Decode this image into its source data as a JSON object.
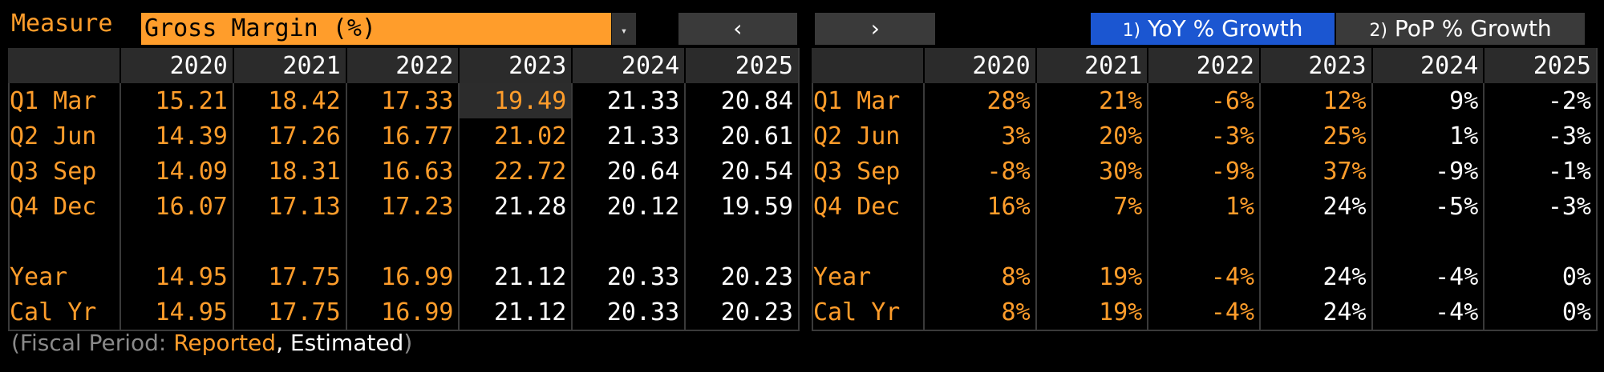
{
  "toolbar": {
    "measure_label": "Measure",
    "measure_value": "Gross Margin (%)",
    "dropdown_glyph": "▾",
    "prev_glyph": "‹",
    "next_glyph": "›",
    "yoy_key": "1)",
    "yoy_label": "YoY % Growth",
    "pop_key": "2)",
    "pop_label": "PoP % Growth"
  },
  "colors": {
    "accent_orange": "#ff9d2b",
    "selected_blue": "#1b56d1",
    "header_gray": "#2b2b2b"
  },
  "years": [
    "2020",
    "2021",
    "2022",
    "2023",
    "2024",
    "2025"
  ],
  "left_table": {
    "rows": [
      {
        "label": "Q1 Mar",
        "values": [
          "15.21",
          "18.42",
          "17.33",
          "19.49",
          "21.33",
          "20.84"
        ],
        "reported": [
          true,
          true,
          true,
          true,
          false,
          false
        ]
      },
      {
        "label": "Q2 Jun",
        "values": [
          "14.39",
          "17.26",
          "16.77",
          "21.02",
          "21.33",
          "20.61"
        ],
        "reported": [
          true,
          true,
          true,
          true,
          false,
          false
        ]
      },
      {
        "label": "Q3 Sep",
        "values": [
          "14.09",
          "18.31",
          "16.63",
          "22.72",
          "20.64",
          "20.54"
        ],
        "reported": [
          true,
          true,
          true,
          true,
          false,
          false
        ]
      },
      {
        "label": "Q4 Dec",
        "values": [
          "16.07",
          "17.13",
          "17.23",
          "21.28",
          "20.12",
          "19.59"
        ],
        "reported": [
          true,
          true,
          true,
          false,
          false,
          false
        ]
      },
      {
        "label": "",
        "values": [
          "",
          "",
          "",
          "",
          "",
          ""
        ],
        "reported": [
          false,
          false,
          false,
          false,
          false,
          false
        ]
      },
      {
        "label": "Year",
        "values": [
          "14.95",
          "17.75",
          "16.99",
          "21.12",
          "20.33",
          "20.23"
        ],
        "reported": [
          true,
          true,
          true,
          false,
          false,
          false
        ]
      },
      {
        "label": "Cal Yr",
        "values": [
          "14.95",
          "17.75",
          "16.99",
          "21.12",
          "20.33",
          "20.23"
        ],
        "reported": [
          true,
          true,
          true,
          false,
          false,
          false
        ]
      }
    ]
  },
  "right_table": {
    "rows": [
      {
        "label": "Q1 Mar",
        "values": [
          "28%",
          "21%",
          "-6%",
          "12%",
          "9%",
          "-2%"
        ],
        "reported": [
          true,
          true,
          true,
          true,
          false,
          false
        ]
      },
      {
        "label": "Q2 Jun",
        "values": [
          "3%",
          "20%",
          "-3%",
          "25%",
          "1%",
          "-3%"
        ],
        "reported": [
          true,
          true,
          true,
          true,
          false,
          false
        ]
      },
      {
        "label": "Q3 Sep",
        "values": [
          "-8%",
          "30%",
          "-9%",
          "37%",
          "-9%",
          "-1%"
        ],
        "reported": [
          true,
          true,
          true,
          true,
          false,
          false
        ]
      },
      {
        "label": "Q4 Dec",
        "values": [
          "16%",
          "7%",
          "1%",
          "24%",
          "-5%",
          "-3%"
        ],
        "reported": [
          true,
          true,
          true,
          false,
          false,
          false
        ]
      },
      {
        "label": "",
        "values": [
          "",
          "",
          "",
          "",
          "",
          ""
        ],
        "reported": [
          false,
          false,
          false,
          false,
          false,
          false
        ]
      },
      {
        "label": "Year",
        "values": [
          "8%",
          "19%",
          "-4%",
          "24%",
          "-4%",
          "0%"
        ],
        "reported": [
          true,
          true,
          true,
          false,
          false,
          false
        ]
      },
      {
        "label": "Cal Yr",
        "values": [
          "8%",
          "19%",
          "-4%",
          "24%",
          "-4%",
          "0%"
        ],
        "reported": [
          true,
          true,
          true,
          false,
          false,
          false
        ]
      }
    ]
  },
  "footnote": {
    "open": "(Fiscal Period: ",
    "reported": "Reported",
    "sep": ", ",
    "estimated": "Estimated",
    "close": ")"
  }
}
